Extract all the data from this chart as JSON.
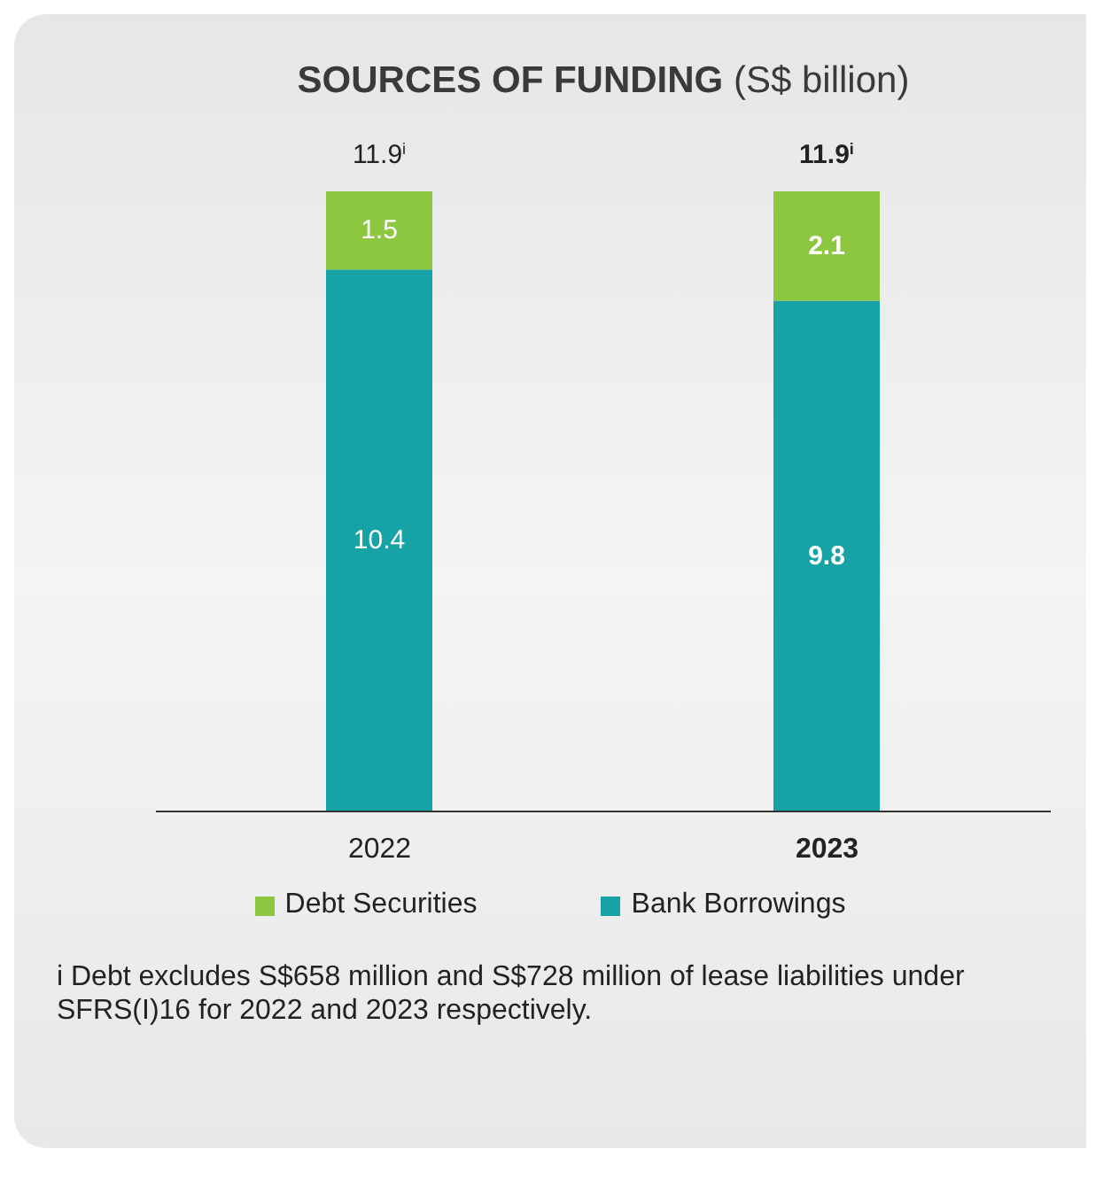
{
  "chart_data": {
    "type": "bar",
    "title": "SOURCES OF FUNDING",
    "subtitle": "(S$ billion)",
    "categories": [
      "2022",
      "2023"
    ],
    "stacked": true,
    "series": [
      {
        "name": "Bank Borrowings",
        "color": "#17a2a6",
        "values": [
          10.4,
          9.8
        ]
      },
      {
        "name": "Debt Securities",
        "color": "#8dc63f",
        "values": [
          1.5,
          2.1
        ]
      }
    ],
    "data_labels": true,
    "totals": [
      "11.9$^{i}$",
      "11.9$^{i}$"
    ],
    "legend": "bottom",
    "annotations": [
      "i Debt excludes S$658 million and S$728 million of lease liabilities under SFRS(I)16 for 2022 and 2023 respectively."
    ]
  }
}
